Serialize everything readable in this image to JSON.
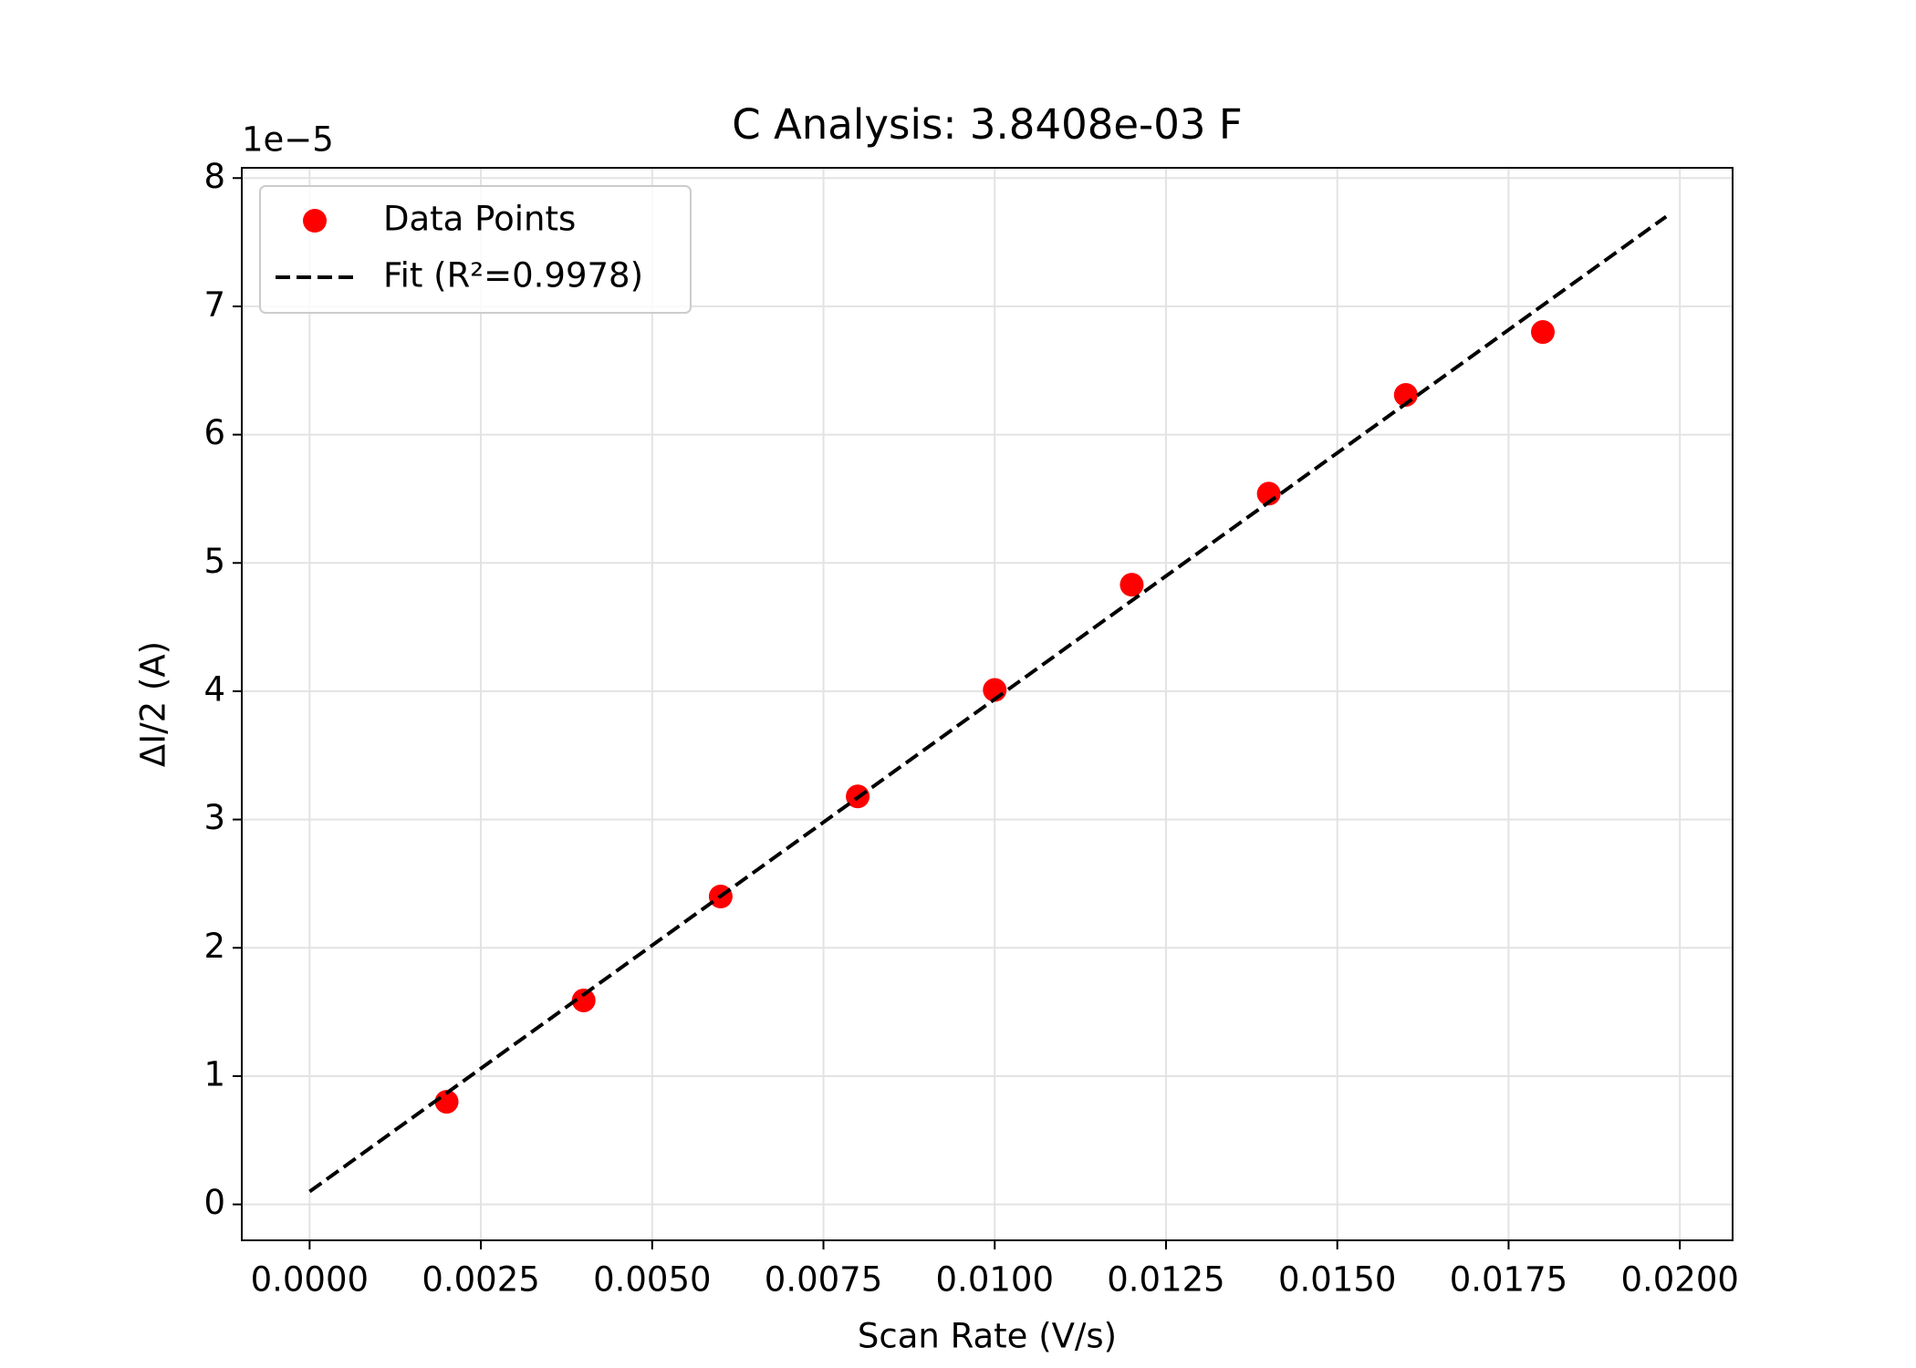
{
  "chart_data": {
    "type": "scatter",
    "title": "C Analysis: 3.8408e-03 F",
    "x_label": "Scan Rate (V/s)",
    "y_label": "ΔI/2 (A)",
    "y_offset_label": "1e−5",
    "series": [
      {
        "name": "Data Points",
        "color": "#ff0000",
        "type": "scatter",
        "x": [
          0.002,
          0.004,
          0.006,
          0.008,
          0.01,
          0.012,
          0.014,
          0.016,
          0.018
        ],
        "values": [
          0.8,
          1.59,
          2.4,
          3.18,
          4.01,
          4.83,
          5.54,
          6.31,
          6.8
        ]
      },
      {
        "name": "Fit (R²=0.9978)",
        "color": "#000000",
        "type": "line",
        "dashed": true,
        "x": [
          0,
          0.0198
        ],
        "values": [
          0.1,
          7.7
        ]
      }
    ],
    "xlim": [
      -0.00099,
      0.02077
    ],
    "ylim": [
      -0.28,
      8.08
    ],
    "xticks": [
      {
        "value": 0,
        "label": "0.0000"
      },
      {
        "value": 0.0025,
        "label": "0.0025"
      },
      {
        "value": 0.005,
        "label": "0.0050"
      },
      {
        "value": 0.0075,
        "label": "0.0075"
      },
      {
        "value": 0.01,
        "label": "0.0100"
      },
      {
        "value": 0.0125,
        "label": "0.0125"
      },
      {
        "value": 0.015,
        "label": "0.0150"
      },
      {
        "value": 0.0175,
        "label": "0.0175"
      },
      {
        "value": 0.02,
        "label": "0.0200"
      }
    ],
    "yticks": [
      0,
      1,
      2,
      3,
      4,
      5,
      6,
      7,
      8
    ],
    "grid": true,
    "legend": "upper-left"
  }
}
